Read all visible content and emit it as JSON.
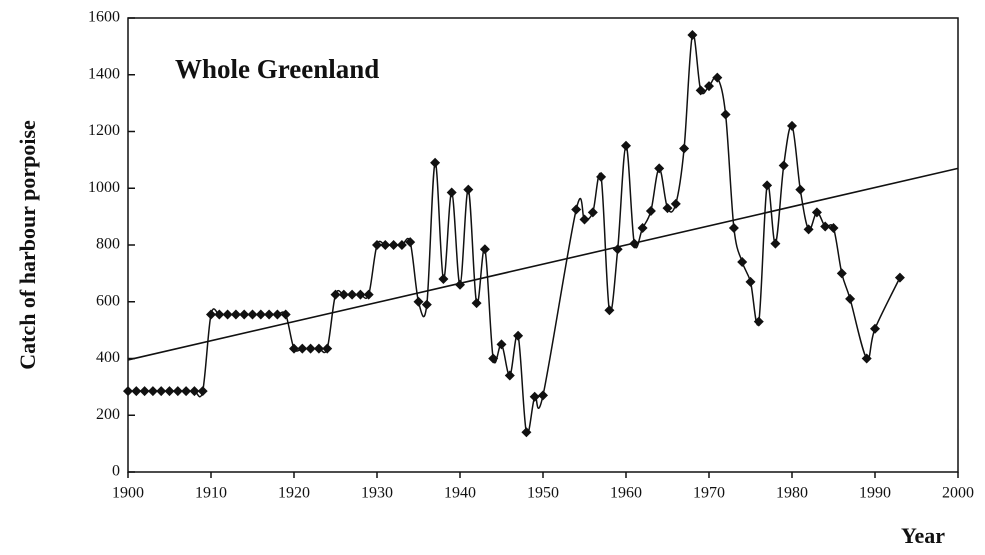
{
  "chart_data": {
    "type": "scatter",
    "title": "Whole Greenland",
    "y_label": "Catch of harbour porpoise",
    "x_label": "Year",
    "color": "#111111",
    "smooth": true,
    "x": [
      1900,
      1901,
      1902,
      1903,
      1904,
      1905,
      1906,
      1907,
      1908,
      1909,
      1910,
      1911,
      1912,
      1913,
      1914,
      1915,
      1916,
      1917,
      1918,
      1919,
      1920,
      1921,
      1922,
      1923,
      1924,
      1925,
      1926,
      1927,
      1928,
      1929,
      1930,
      1931,
      1932,
      1933,
      1934,
      1935,
      1936,
      1937,
      1938,
      1939,
      1940,
      1941,
      1942,
      1943,
      1944,
      1945,
      1946,
      1947,
      1948,
      1949,
      1950,
      1954,
      1955,
      1956,
      1957,
      1958,
      1959,
      1960,
      1961,
      1962,
      1963,
      1964,
      1965,
      1966,
      1967,
      1968,
      1969,
      1970,
      1971,
      1972,
      1973,
      1974,
      1975,
      1976,
      1977,
      1978,
      1979,
      1980,
      1981,
      1982,
      1983,
      1984,
      1985,
      1986,
      1987,
      1989,
      1990,
      1993
    ],
    "values": [
      285,
      285,
      285,
      285,
      285,
      285,
      285,
      285,
      285,
      285,
      555,
      555,
      555,
      555,
      555,
      555,
      555,
      555,
      555,
      555,
      435,
      435,
      435,
      435,
      435,
      625,
      625,
      625,
      625,
      625,
      800,
      800,
      800,
      800,
      810,
      600,
      590,
      1090,
      680,
      985,
      660,
      995,
      595,
      785,
      400,
      450,
      340,
      480,
      140,
      265,
      270,
      925,
      890,
      915,
      1040,
      570,
      785,
      1150,
      805,
      860,
      920,
      1070,
      930,
      945,
      1140,
      1540,
      1345,
      1360,
      1390,
      1260,
      860,
      740,
      670,
      530,
      1010,
      805,
      1080,
      1220,
      995,
      855,
      915,
      865,
      860,
      700,
      610,
      400,
      505,
      685
    ],
    "trend": {
      "x": [
        1900,
        2000
      ],
      "values": [
        395,
        1070
      ]
    },
    "xlim": [
      1900,
      2000
    ],
    "ylim": [
      0,
      1600
    ],
    "xticks": [
      1900,
      1910,
      1920,
      1930,
      1940,
      1950,
      1960,
      1970,
      1980,
      1990,
      2000
    ],
    "yticks": [
      0,
      200,
      400,
      600,
      800,
      1000,
      1200,
      1400,
      1600
    ]
  }
}
